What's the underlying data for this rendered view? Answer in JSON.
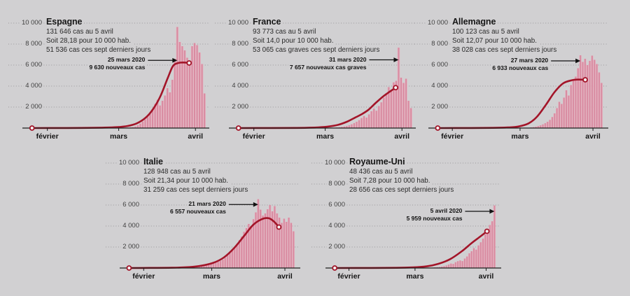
{
  "page": {
    "background": "#d1d0d2"
  },
  "colors": {
    "bar_light": "#e6b5c2",
    "bar_core": "#d88ba1",
    "line": "#a31529",
    "marker_fill": "#f4f1f2",
    "grid": "#9a989b",
    "axis": "#1c1c1c",
    "text": "#161616"
  },
  "axis": {
    "ylim": [
      0,
      10000
    ],
    "y_tick_values": [
      10000,
      8000,
      6000,
      4000,
      2000
    ],
    "y_tick_labels": [
      "10 000",
      "8 000",
      "6 000",
      "4 000",
      "2 000"
    ],
    "months": [
      "février",
      "mars",
      "avril"
    ],
    "month_fracs": [
      0.115,
      0.51,
      0.935
    ],
    "grid": "dotted"
  },
  "chart_data": [
    {
      "type": "bar+line",
      "title": "Espagne",
      "stats": [
        "131 646 cas au 5 avril",
        "Soit 28,18 pour 10 000 hab.",
        "51 536 cas ces sept derniers jours"
      ],
      "annotation": {
        "date": "25 mars 2020",
        "label": "9 630 nouveaux cas",
        "day_index": 61,
        "pointer_value": 6450
      },
      "bars": [
        0,
        0,
        0,
        0,
        0,
        0,
        0,
        0,
        0,
        0,
        0,
        0,
        0,
        0,
        0,
        0,
        0,
        0,
        0,
        0,
        0,
        0,
        0,
        0,
        0,
        0,
        0,
        0,
        0,
        0,
        0,
        0,
        0,
        0,
        0,
        0,
        0,
        10,
        15,
        20,
        30,
        45,
        60,
        90,
        150,
        260,
        420,
        620,
        820,
        1050,
        1350,
        1750,
        2300,
        2700,
        2150,
        2600,
        3100,
        3800,
        3400,
        4600,
        6600,
        9630,
        8200,
        7800,
        7400,
        6700,
        6300,
        7800,
        8100,
        7900,
        7200,
        6100,
        3300
      ],
      "line": [
        [
          0.03,
          0
        ],
        [
          0.15,
          5
        ],
        [
          0.3,
          15
        ],
        [
          0.42,
          40
        ],
        [
          0.5,
          90
        ],
        [
          0.56,
          200
        ],
        [
          0.61,
          450
        ],
        [
          0.66,
          1000
        ],
        [
          0.7,
          1800
        ],
        [
          0.74,
          3000
        ],
        [
          0.78,
          4700
        ],
        [
          0.81,
          5900
        ],
        [
          0.84,
          6200
        ],
        [
          0.87,
          6250
        ],
        [
          0.9,
          6200
        ]
      ]
    },
    {
      "type": "bar+line",
      "title": "France",
      "stats": [
        "93 773 cas au 5 avril",
        "Soit 14,0 pour 10 000 hab.",
        "53 065 cas graves ces sept derniers jours"
      ],
      "annotation": {
        "date": "31 mars 2020",
        "label": "7 657 nouveaux cas graves",
        "day_index": 67,
        "pointer_value": 6500
      },
      "bars": [
        0,
        0,
        0,
        0,
        0,
        0,
        0,
        0,
        0,
        0,
        0,
        0,
        0,
        0,
        0,
        0,
        0,
        0,
        0,
        0,
        0,
        0,
        0,
        0,
        0,
        0,
        0,
        0,
        0,
        0,
        0,
        0,
        0,
        0,
        0,
        0,
        0,
        0,
        0,
        20,
        30,
        40,
        60,
        80,
        110,
        150,
        200,
        260,
        360,
        470,
        600,
        750,
        950,
        1150,
        1000,
        1300,
        1600,
        1850,
        1650,
        2100,
        2450,
        2900,
        3300,
        3900,
        3600,
        4350,
        4500,
        7657,
        4800,
        4300,
        4700,
        2600,
        1900
      ],
      "line": [
        [
          0.03,
          0
        ],
        [
          0.2,
          5
        ],
        [
          0.35,
          15
        ],
        [
          0.45,
          50
        ],
        [
          0.52,
          130
        ],
        [
          0.58,
          300
        ],
        [
          0.63,
          600
        ],
        [
          0.67,
          950
        ],
        [
          0.71,
          1300
        ],
        [
          0.75,
          1750
        ],
        [
          0.79,
          2400
        ],
        [
          0.83,
          3000
        ],
        [
          0.87,
          3500
        ],
        [
          0.9,
          3850
        ]
      ]
    },
    {
      "type": "bar+line",
      "title": "Allemagne",
      "stats": [
        "100 123 cas au 5 avril",
        "Soit 12,07 pour 10 000 hab.",
        "38 028 cas ces sept derniers jours"
      ],
      "annotation": {
        "date": "27 mars 2020",
        "label": "6 933 nouveaux cas",
        "day_index": 63,
        "pointer_value": 6400
      },
      "bars": [
        0,
        0,
        0,
        0,
        0,
        0,
        0,
        0,
        0,
        0,
        0,
        0,
        0,
        0,
        0,
        0,
        0,
        0,
        0,
        0,
        0,
        0,
        0,
        0,
        0,
        0,
        0,
        0,
        0,
        0,
        0,
        0,
        0,
        0,
        0,
        0,
        0,
        0,
        0,
        0,
        0,
        0,
        60,
        90,
        130,
        190,
        260,
        350,
        460,
        600,
        780,
        1050,
        1400,
        1900,
        2500,
        2300,
        2900,
        3600,
        3100,
        4100,
        4500,
        4900,
        5700,
        6933,
        6300,
        6600,
        6000,
        6400,
        6900,
        6500,
        6100,
        5300,
        4300
      ],
      "line": [
        [
          0.03,
          0
        ],
        [
          0.2,
          5
        ],
        [
          0.35,
          20
        ],
        [
          0.44,
          60
        ],
        [
          0.5,
          150
        ],
        [
          0.56,
          450
        ],
        [
          0.61,
          1100
        ],
        [
          0.66,
          2200
        ],
        [
          0.71,
          3400
        ],
        [
          0.76,
          4250
        ],
        [
          0.81,
          4550
        ],
        [
          0.85,
          4620
        ],
        [
          0.89,
          4600
        ]
      ]
    },
    {
      "type": "bar+line",
      "title": "Italie",
      "stats": [
        "128 948 cas au 5 avril",
        "Soit 21,34 pour 10 000 hab.",
        "31 259 cas ces sept derniers jours"
      ],
      "annotation": {
        "date": "21 mars 2020",
        "label": "6 557 nouveaux cas",
        "day_index": 57,
        "pointer_value": 6050
      },
      "bars": [
        0,
        0,
        0,
        0,
        0,
        0,
        0,
        0,
        0,
        0,
        0,
        0,
        0,
        0,
        0,
        0,
        0,
        0,
        0,
        0,
        0,
        0,
        0,
        0,
        0,
        0,
        0,
        0,
        0,
        60,
        80,
        110,
        150,
        180,
        220,
        240,
        280,
        350,
        420,
        500,
        590,
        680,
        800,
        980,
        1200,
        1450,
        1750,
        2000,
        2300,
        2650,
        3000,
        3450,
        3800,
        4200,
        4000,
        4650,
        5300,
        6557,
        5560,
        5000,
        5200,
        5600,
        6000,
        5400,
        5900,
        5200,
        4800,
        4300,
        4700,
        4400,
        4800,
        4300,
        3500
      ],
      "line": [
        [
          0.03,
          0
        ],
        [
          0.15,
          10
        ],
        [
          0.28,
          30
        ],
        [
          0.38,
          90
        ],
        [
          0.45,
          220
        ],
        [
          0.52,
          500
        ],
        [
          0.58,
          1000
        ],
        [
          0.64,
          1900
        ],
        [
          0.7,
          3100
        ],
        [
          0.75,
          4100
        ],
        [
          0.8,
          4650
        ],
        [
          0.84,
          4750
        ],
        [
          0.87,
          4450
        ],
        [
          0.9,
          3900
        ]
      ]
    },
    {
      "type": "bar+line",
      "title": "Royaume-Uni",
      "stats": [
        "48 436 cas au 5 avril",
        "Soit 7,28 pour 10 000 hab.",
        "28 656 cas ces sept derniers jours"
      ],
      "annotation": {
        "date": "5 avril 2020",
        "label": "5 959 nouveaux cas",
        "day_index": 72,
        "pointer_value": 5400
      },
      "bars": [
        0,
        0,
        0,
        0,
        0,
        0,
        0,
        0,
        0,
        0,
        0,
        0,
        0,
        0,
        0,
        0,
        0,
        0,
        0,
        0,
        0,
        0,
        0,
        0,
        0,
        0,
        0,
        0,
        0,
        0,
        0,
        0,
        0,
        0,
        0,
        0,
        0,
        0,
        0,
        0,
        0,
        0,
        0,
        0,
        0,
        0,
        60,
        80,
        100,
        140,
        180,
        240,
        320,
        420,
        390,
        550,
        650,
        720,
        660,
        900,
        1100,
        1400,
        1600,
        1900,
        1750,
        2150,
        2450,
        2800,
        3200,
        3600,
        4100,
        4450,
        5959
      ],
      "line": [
        [
          0.03,
          0
        ],
        [
          0.25,
          5
        ],
        [
          0.4,
          20
        ],
        [
          0.5,
          60
        ],
        [
          0.58,
          160
        ],
        [
          0.65,
          400
        ],
        [
          0.72,
          850
        ],
        [
          0.79,
          1600
        ],
        [
          0.85,
          2400
        ],
        [
          0.9,
          3000
        ],
        [
          0.94,
          3500
        ]
      ]
    }
  ]
}
